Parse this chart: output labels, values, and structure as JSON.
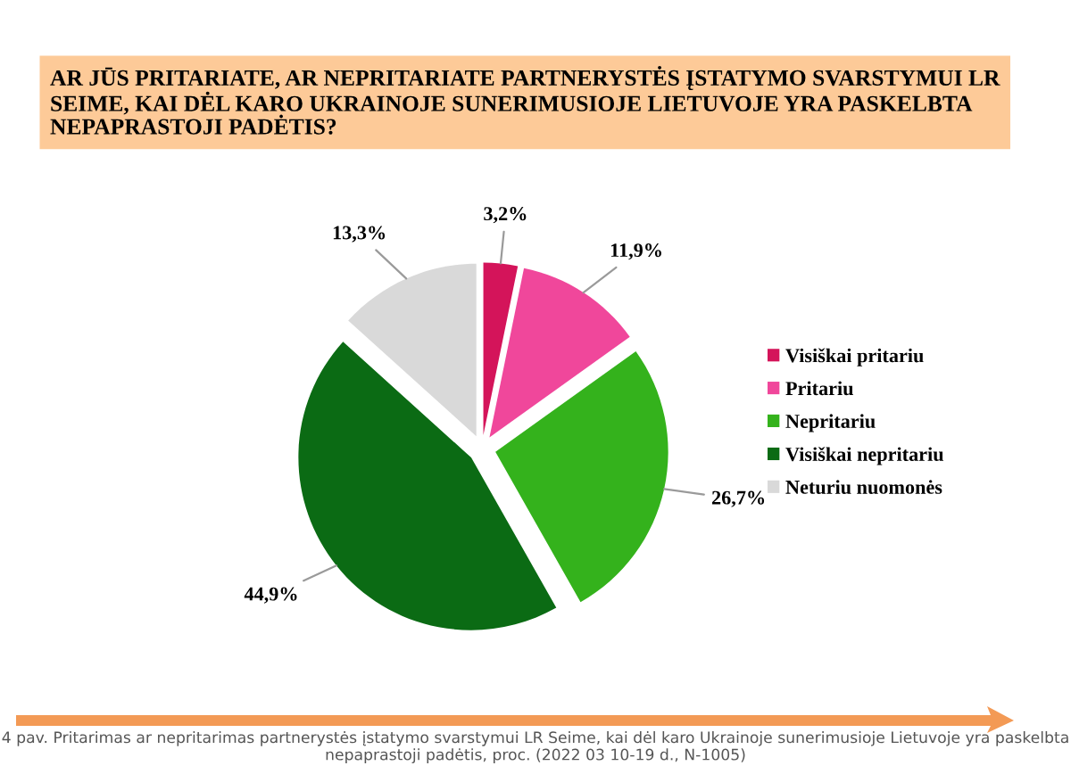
{
  "chart_data": {
    "type": "pie",
    "title": "AR JŪS PRITARIATE, AR NEPRITARIATE PARTNERYSTĖS ĮSTATYMO SVARSTYMUI LR SEIME, KAI DĖL KARO UKRAINOJE SUNERIMUSIOJE LIETUVOJE YRA PASKELBTA NEPAPRASTOJI PADĖTIS?",
    "categories": [
      "Visiškai pritariu",
      "Pritariu",
      "Nepritariu",
      "Visiškai nepritariu",
      "Neturiu nuomonės"
    ],
    "values": [
      3.2,
      11.9,
      26.7,
      44.9,
      13.3
    ],
    "colors": [
      "#d4145a",
      "#f0479b",
      "#34b21c",
      "#0b6b14",
      "#d9d9d9"
    ],
    "value_labels": [
      "3,2%",
      "11,9%",
      "26,7%",
      "44,9%",
      "13,3%"
    ],
    "legend": "right",
    "annotations": [
      "4 pav. Pritarimas ar nepritarimas partnerystės įstatymo svarstymui LR Seime, kai dėl karo Ukrainoje sunerimusioje Lietuvoje yra paskelbta nepaprastoji padėtis, proc. (2022 03 10-19 d., N-1005)"
    ]
  }
}
